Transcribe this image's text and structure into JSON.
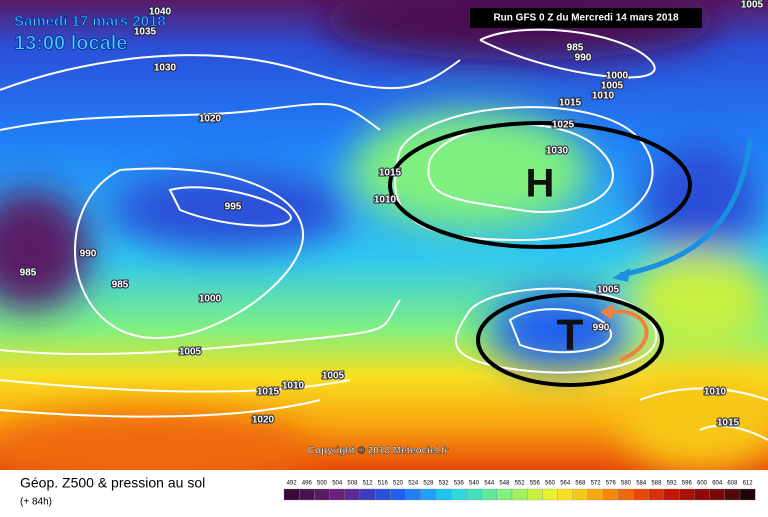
{
  "header": {
    "date": "Samedi 17 mars 2018",
    "time": "13:00 locale",
    "run": "Run GFS 0 Z du Mercredi 14 mars 2018"
  },
  "map": {
    "high_label": "H",
    "low_label": "T",
    "copyright": "Copyright © 2018 Meteociel.fr",
    "isobar_labels": [
      1040,
      1035,
      1030,
      1020,
      995,
      990,
      985,
      985,
      1000,
      1005,
      1015,
      1010,
      1005,
      1020,
      985,
      990,
      1000,
      1005,
      1010,
      1015,
      1025,
      1030,
      1015,
      1010,
      1005,
      990,
      1010,
      1015,
      1005
    ]
  },
  "legend": {
    "title": "Géop. Z500 & pression au sol",
    "subtitle": "(+ 84h)",
    "levels": [
      492,
      496,
      500,
      504,
      508,
      512,
      516,
      520,
      524,
      528,
      532,
      536,
      540,
      544,
      548,
      552,
      556,
      560,
      564,
      568,
      572,
      576,
      580,
      584,
      588,
      592,
      596,
      600,
      604,
      608,
      612
    ],
    "colors": [
      "#3a0a3a",
      "#4b1050",
      "#5a1a66",
      "#6a207c",
      "#5a2c9a",
      "#3c3cc0",
      "#2a50d8",
      "#2060f0",
      "#2080f8",
      "#20a0f8",
      "#20c0f0",
      "#30d8e0",
      "#40e0c0",
      "#60e8a0",
      "#80f080",
      "#a0f060",
      "#c8f040",
      "#e8f030",
      "#f8e020",
      "#f8c818",
      "#f8a810",
      "#f88808",
      "#f06808",
      "#e84808",
      "#d83008",
      "#c01808",
      "#a81008",
      "#900808",
      "#780808",
      "#500808",
      "#200404"
    ]
  }
}
